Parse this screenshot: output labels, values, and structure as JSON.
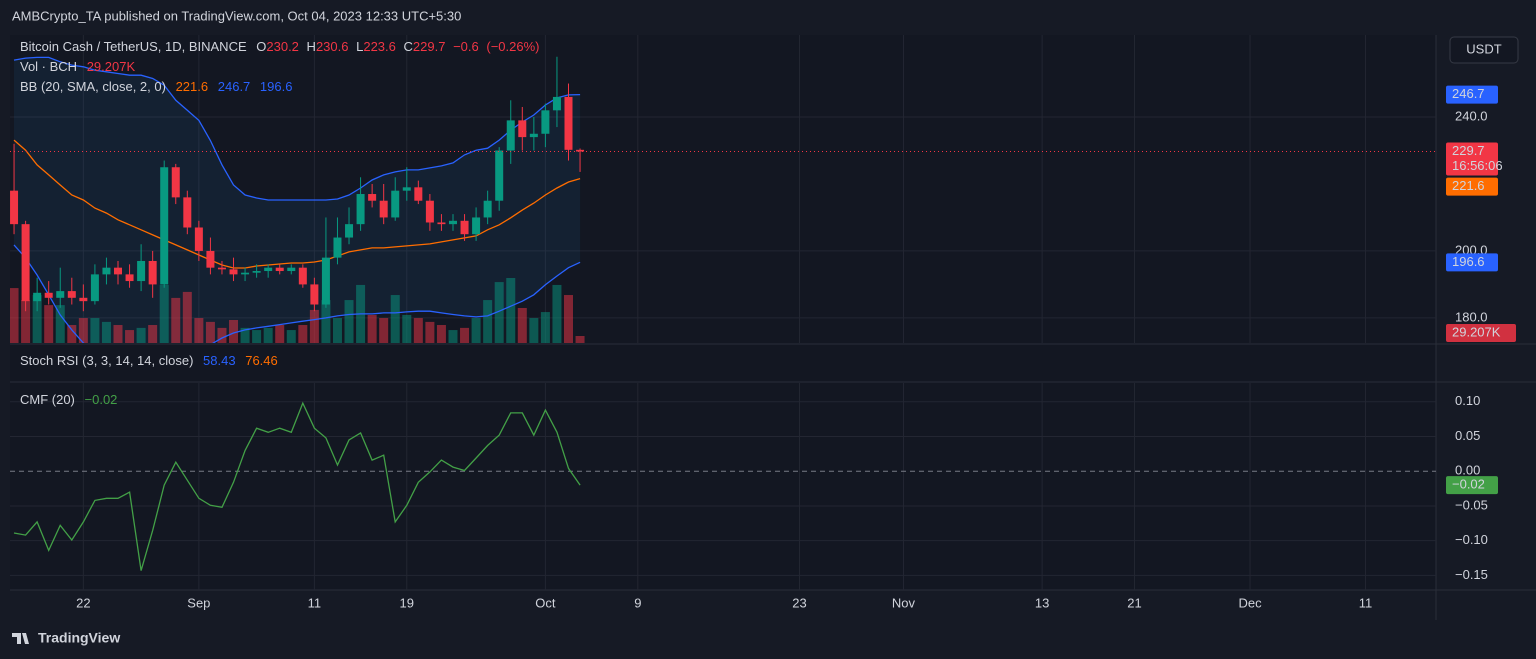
{
  "header": "AMBCrypto_TA published on TradingView.com, Oct 04, 2023 12:33 UTC+5:30",
  "footer": "TradingView",
  "chart_data": [
    {
      "type": "candlestick",
      "title": "Bitcoin Cash / TetherUS, 1D, BINANCE",
      "legend_prefixes": [
        "O",
        "H",
        "L",
        "C"
      ],
      "change": {
        "value": -0.6,
        "label": "−0.6"
      },
      "change_pct": {
        "value": -0.26,
        "label": "(−0.26%)"
      },
      "currency": "USDT",
      "countdown": "16:56:06",
      "up_color": "#089981",
      "down_color": "#f23645",
      "open": [
        218,
        208,
        185,
        187.5,
        186,
        188,
        186,
        185,
        193,
        195,
        193,
        191,
        197,
        190,
        225,
        216,
        207,
        200,
        195,
        194.5,
        193,
        193.5,
        194,
        195,
        194,
        195,
        190,
        184,
        198,
        204,
        208,
        217,
        215,
        210,
        218,
        219,
        215,
        208.5,
        208,
        209,
        205,
        210,
        215,
        230,
        239,
        234,
        235,
        242,
        246,
        230.2
      ],
      "high": [
        232,
        209,
        192,
        191,
        195,
        192,
        190,
        196,
        198,
        197,
        196,
        202,
        200,
        227,
        226,
        218,
        209,
        204,
        197,
        198,
        195,
        196,
        196,
        196,
        196,
        196,
        192,
        210,
        210,
        213,
        222,
        220,
        220,
        222,
        225,
        221,
        217,
        211,
        211,
        211,
        213,
        218,
        231,
        245,
        243,
        240,
        244,
        258,
        250,
        230.6
      ],
      "low": [
        205,
        182,
        182,
        184,
        183,
        184,
        182,
        184,
        190,
        190,
        189,
        188,
        186,
        189,
        214,
        205,
        197,
        193,
        193,
        191,
        191,
        192,
        192,
        193,
        193,
        189,
        182,
        183,
        196,
        202,
        206,
        213,
        208,
        209,
        215,
        214,
        206,
        206,
        206,
        203,
        203,
        208,
        212,
        226,
        230,
        230,
        231,
        237,
        227,
        223.6
      ],
      "close": [
        208,
        185,
        187.5,
        186,
        188,
        186,
        185,
        193,
        195,
        193,
        191,
        197,
        190,
        225,
        216,
        207,
        200,
        195,
        194.5,
        193,
        193.5,
        194,
        195,
        194,
        195,
        190,
        184,
        198,
        204,
        208,
        217,
        215,
        210,
        218,
        219,
        215,
        208.5,
        208,
        209,
        205,
        210,
        215,
        230,
        239,
        234,
        235,
        242,
        246,
        230.2,
        229.7
      ],
      "volume": {
        "name": "Vol · BCH",
        "value_label": "29.207K",
        "values": [
          229000,
          179000,
          200000,
          158000,
          158000,
          75000,
          104000,
          104000,
          88000,
          75000,
          54000,
          63000,
          75000,
          242000,
          188000,
          213000,
          104000,
          88000,
          63000,
          96000,
          63000,
          54000,
          63000,
          75000,
          54000,
          75000,
          138000,
          179000,
          104000,
          179000,
          242000,
          117000,
          104000,
          200000,
          117000,
          104000,
          88000,
          75000,
          54000,
          63000,
          104000,
          179000,
          254000,
          271000,
          146000,
          104000,
          129000,
          242000,
          200000,
          29207
        ]
      },
      "bb_name": "BB (20, SMA, close, 2, 0)",
      "bb_basis": {
        "color": "#ff6d00",
        "values": [
          233.1,
          230.1,
          225.7,
          222.7,
          219.7,
          216.7,
          215.2,
          212.8,
          211.3,
          209.3,
          207.8,
          206.3,
          204.8,
          203.3,
          201.8,
          200.3,
          198.8,
          197.3,
          195.8,
          194.9,
          194.9,
          195.5,
          195.8,
          196.1,
          196.4,
          196.4,
          196.7,
          197.3,
          198.5,
          199.7,
          200.3,
          200.9,
          200.9,
          201.2,
          201.5,
          201.8,
          202.1,
          202.7,
          203.3,
          203.9,
          204.5,
          206.3,
          207.8,
          209.9,
          212.2,
          214.3,
          216.7,
          218.8,
          220.6,
          221.6
        ]
      },
      "bb_upper": {
        "color": "#2962ff",
        "values": [
          257,
          257.6,
          257.8,
          257.8,
          256.5,
          255.5,
          255,
          254,
          253.5,
          253,
          252.5,
          252.5,
          251.5,
          249.5,
          245,
          242,
          239,
          233,
          225.7,
          219.7,
          216.7,
          215.8,
          215.2,
          215.2,
          215.2,
          215.2,
          215.2,
          215.2,
          215.5,
          216.7,
          218.8,
          221.2,
          222.7,
          223.6,
          224.2,
          224.2,
          224.8,
          225.4,
          226.3,
          228.7,
          230.1,
          230.7,
          233.1,
          236.1,
          238.5,
          240.6,
          243.6,
          245.7,
          246.6,
          246.7
        ]
      },
      "bb_lower": {
        "color": "#2962ff",
        "values": [
          201.8,
          197.9,
          192.8,
          186.9,
          180.9,
          176.4,
          172.5,
          170,
          168,
          166,
          165,
          165,
          166,
          166,
          167,
          168,
          170,
          172,
          174,
          175.5,
          176.4,
          177,
          177.5,
          178,
          178.5,
          179,
          179.5,
          180,
          180.6,
          181,
          181.2,
          181.2,
          181.5,
          181.5,
          181.8,
          182,
          182,
          181.5,
          181,
          180.6,
          180.3,
          180.6,
          182,
          183.5,
          185,
          186.9,
          189.9,
          192.5,
          195,
          196.6
        ]
      },
      "ylim": [
        172.5,
        264.5
      ],
      "yticks": [
        {
          "value": 180,
          "label": "180.0"
        },
        {
          "value": 200,
          "label": "200.0"
        },
        {
          "value": 240,
          "label": "240.0"
        }
      ],
      "xlim": [
        -0.35,
        123.1
      ]
    },
    {
      "type": "line",
      "name": "CMF (20)",
      "color": "#43a047",
      "value_label": "−0.02",
      "values": [
        -0.089,
        -0.092,
        -0.073,
        -0.114,
        -0.078,
        -0.099,
        -0.073,
        -0.042,
        -0.039,
        -0.039,
        -0.03,
        -0.143,
        -0.085,
        -0.02,
        0.013,
        -0.013,
        -0.039,
        -0.049,
        -0.052,
        -0.016,
        0.03,
        0.062,
        0.056,
        0.062,
        0.056,
        0.098,
        0.062,
        0.048,
        0.009,
        0.045,
        0.055,
        0.016,
        0.023,
        -0.073,
        -0.049,
        -0.016,
        -0.001,
        0.016,
        0.006,
        0.001,
        0.019,
        0.037,
        0.052,
        0.084,
        0.084,
        0.052,
        0.088,
        0.056,
        0.004,
        -0.02
      ],
      "ylim": [
        -0.171,
        0.127
      ],
      "yticks": [
        {
          "value": 0.1,
          "label": "0.10"
        },
        {
          "value": 0.05,
          "label": "0.05"
        },
        {
          "value": 0,
          "label": "0.00"
        },
        {
          "value": -0.05,
          "label": "−0.05"
        },
        {
          "value": -0.1,
          "label": "−0.10"
        },
        {
          "value": -0.15,
          "label": "−0.15"
        }
      ],
      "zero_line": true,
      "xlim": [
        -0.35,
        123.1
      ],
      "xticks": [
        {
          "value": 6,
          "label": "22"
        },
        {
          "value": 16,
          "label": "Sep"
        },
        {
          "value": 26,
          "label": "11"
        },
        {
          "value": 34,
          "label": "19"
        },
        {
          "value": 46,
          "label": "Oct"
        },
        {
          "value": 54,
          "label": "9"
        },
        {
          "value": 68,
          "label": "23"
        },
        {
          "value": 77,
          "label": "Nov"
        },
        {
          "value": 89,
          "label": "13"
        },
        {
          "value": 97,
          "label": "21"
        },
        {
          "value": 107,
          "label": "Dec"
        },
        {
          "value": 117,
          "label": "11"
        }
      ]
    },
    {
      "type": "indicator",
      "name": "Stoch RSI (3, 3, 14, 14, close)",
      "k": 58.43,
      "d": 76.46,
      "k_color": "#2962ff",
      "d_color": "#ff6d00"
    }
  ]
}
